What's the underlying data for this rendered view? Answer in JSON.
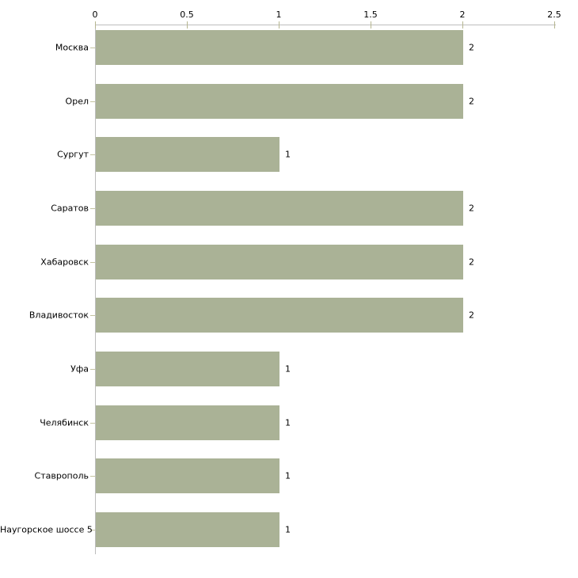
{
  "chart_data": {
    "type": "bar",
    "orientation": "horizontal",
    "title": "",
    "xlabel": "",
    "ylabel": "",
    "categories": [
      "Москва",
      "Орел",
      "Сургут",
      "Саратов",
      "Хабаровск",
      "Владивосток",
      "Уфа",
      "Челябинск",
      "Ставрополь",
      "Наугорское шоссе 5"
    ],
    "values": [
      2,
      2,
      1,
      2,
      2,
      2,
      1,
      1,
      1,
      1
    ],
    "value_labels": [
      "2",
      "2",
      "1",
      "2",
      "2",
      "2",
      "1",
      "1",
      "1",
      "1"
    ],
    "xlim": [
      0,
      2.5
    ],
    "x_ticks": [
      0,
      0.5,
      1,
      1.5,
      2,
      2.5
    ],
    "x_tick_labels": [
      "0",
      "0.5",
      "1",
      "1.5",
      "2",
      "2.5"
    ],
    "axis_position": "top",
    "grid": "off",
    "legend": "none",
    "colors": {
      "bar": "#aab296",
      "axis_line": "#bdbdbd",
      "tick": "#b6b690",
      "text": "#000000",
      "background": "#ffffff"
    }
  }
}
